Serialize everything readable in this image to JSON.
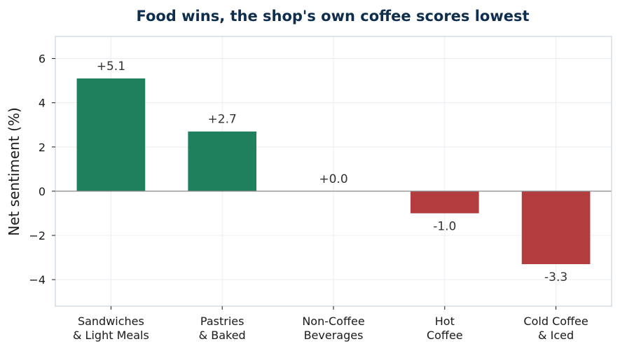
{
  "chart_data": {
    "type": "bar",
    "title": "Food wins, the shop's own coffee scores lowest",
    "xlabel": "",
    "ylabel": "Net sentiment (%)",
    "categories": [
      [
        "Sandwiches",
        "& Light Meals"
      ],
      [
        "Pastries",
        "& Baked"
      ],
      [
        "Non-Coffee",
        "Beverages"
      ],
      [
        "Hot",
        "Coffee"
      ],
      [
        "Cold Coffee",
        "& Iced"
      ]
    ],
    "values": [
      5.1,
      2.7,
      0.0,
      -1.0,
      -3.3
    ],
    "data_labels": [
      "+5.1",
      "+2.7",
      "+0.0",
      "-1.0",
      "-3.3"
    ],
    "ylim": [
      -5.2,
      7.0
    ],
    "yticks": [
      6,
      4,
      2,
      0,
      -2,
      -4
    ],
    "ytick_labels": [
      "6",
      "4",
      "2",
      "0",
      "−2",
      "−4"
    ],
    "grid": true,
    "colors": {
      "positive": "#1e805c",
      "negative": "#b23c3e",
      "zero_line": "#888888",
      "grid": "#e8edf2",
      "frame": "#c8d4e0",
      "title": "#0f2e4d"
    }
  }
}
